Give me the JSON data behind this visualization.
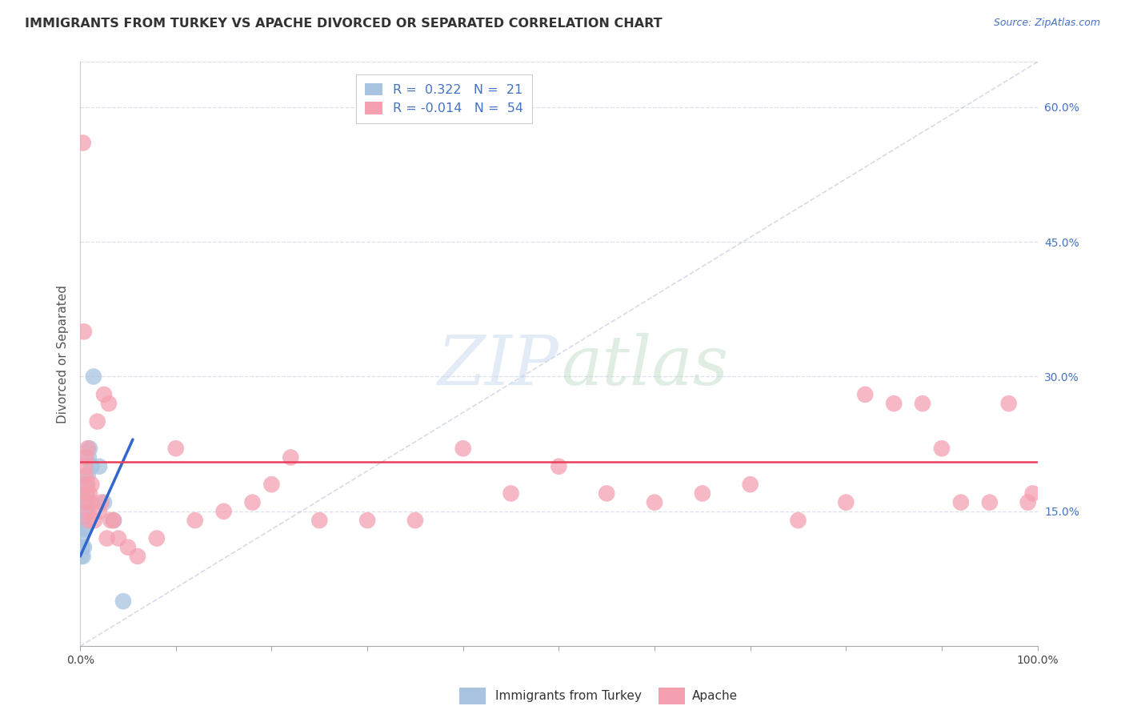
{
  "title": "IMMIGRANTS FROM TURKEY VS APACHE DIVORCED OR SEPARATED CORRELATION CHART",
  "source": "Source: ZipAtlas.com",
  "ylabel": "Divorced or Separated",
  "legend_label1": "Immigrants from Turkey",
  "legend_label2": "Apache",
  "r1": "0.322",
  "n1": "21",
  "r2": "-0.014",
  "n2": "54",
  "xlim": [
    0,
    100
  ],
  "ylim": [
    0,
    65
  ],
  "ytick_vals": [
    15,
    30,
    45,
    60
  ],
  "xtick_vals": [
    0,
    10,
    20,
    30,
    40,
    50,
    60,
    70,
    80,
    90,
    100
  ],
  "color_blue": "#a8c4e0",
  "color_pink": "#f4a0b0",
  "color_trendline_blue": "#3366cc",
  "color_trendline_pink": "#e8405a",
  "color_diagonal": "#c0c8d8",
  "color_grid": "#d8dde8",
  "watermark_zip": "ZIP",
  "watermark_atlas": "atlas",
  "pink_trendline_y": 20.5,
  "blue_x": [
    0.1,
    0.15,
    0.2,
    0.25,
    0.3,
    0.35,
    0.4,
    0.45,
    0.5,
    0.55,
    0.6,
    0.7,
    0.8,
    0.9,
    1.0,
    1.2,
    1.4,
    2.0,
    2.5,
    3.5,
    4.5
  ],
  "blue_y": [
    10,
    12,
    11,
    13,
    10,
    14,
    11,
    13,
    15,
    16,
    18,
    17,
    19,
    21,
    22,
    20,
    30,
    20,
    16,
    14,
    5
  ],
  "pink_x": [
    0.3,
    0.4,
    0.5,
    0.55,
    0.6,
    0.65,
    0.7,
    0.75,
    0.8,
    0.85,
    0.9,
    1.0,
    1.1,
    1.2,
    1.5,
    1.8,
    2.0,
    2.2,
    2.5,
    3.0,
    3.5,
    4.0,
    5.0,
    6.0,
    8.0,
    10.0,
    12.0,
    15.0,
    18.0,
    20.0,
    22.0,
    25.0,
    30.0,
    35.0,
    40.0,
    45.0,
    50.0,
    55.0,
    60.0,
    65.0,
    70.0,
    75.0,
    80.0,
    82.0,
    85.0,
    88.0,
    90.0,
    92.0,
    95.0,
    97.0,
    99.0,
    99.5,
    3.2,
    2.8
  ],
  "pink_y": [
    56,
    35,
    20,
    19,
    21,
    17,
    16,
    18,
    22,
    15,
    14,
    17,
    16,
    18,
    14,
    25,
    15,
    16,
    28,
    27,
    14,
    12,
    11,
    10,
    12,
    22,
    14,
    15,
    16,
    18,
    21,
    14,
    14,
    14,
    22,
    17,
    20,
    17,
    16,
    17,
    18,
    14,
    16,
    28,
    27,
    27,
    22,
    16,
    16,
    27,
    16,
    17,
    14,
    12
  ]
}
